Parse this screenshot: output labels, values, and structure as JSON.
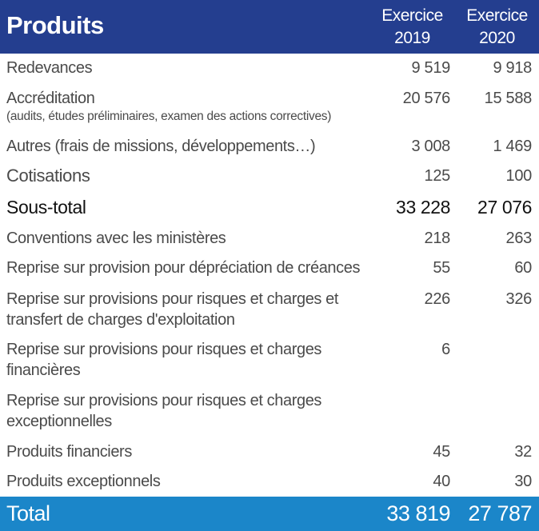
{
  "header": {
    "title": "Produits",
    "col1_line1": "Exercice",
    "col1_line2": "2019",
    "col2_line1": "Exercice",
    "col2_line2": "2020"
  },
  "rows": [
    {
      "label": "Redevances",
      "v2019": "9 519",
      "v2020": "9 918"
    },
    {
      "label": "Accréditation",
      "sublabel": "(audits, études préliminaires, examen des actions correctives)",
      "v2019": "20 576",
      "v2020": "15 588"
    },
    {
      "label": "Autres (frais de missions, développements…)",
      "v2019": "3 008",
      "v2020": "1 469"
    },
    {
      "label": "Cotisations",
      "v2019": "125",
      "v2020": "100"
    },
    {
      "label": "Sous-total",
      "v2019": "33 228",
      "v2020": "27 076"
    },
    {
      "label": "Conventions avec les ministères",
      "v2019": "218",
      "v2020": "263"
    },
    {
      "label": "Reprise sur provision pour dépréciation de créances",
      "v2019": "55",
      "v2020": "60"
    },
    {
      "label": "Reprise sur provisions pour risques et charges et",
      "label2": "transfert de charges d'exploitation",
      "v2019": "226",
      "v2020": "326"
    },
    {
      "label": "Reprise sur provisions pour risques et charges",
      "label2": "financières",
      "v2019": "6",
      "v2020": ""
    },
    {
      "label": "Reprise sur provisions pour risques et charges",
      "label2": "exceptionnelles",
      "v2019": "",
      "v2020": ""
    },
    {
      "label": "Produits financiers",
      "v2019": "45",
      "v2020": "32"
    },
    {
      "label": "Produits exceptionnels",
      "v2019": "40",
      "v2020": "30"
    }
  ],
  "total": {
    "label": "Total",
    "v2019": "33 819",
    "v2020": "27 787"
  },
  "colors": {
    "header_bg": "#243e8f",
    "total_bg": "#1b86c9",
    "text": "#4a4a4a"
  }
}
